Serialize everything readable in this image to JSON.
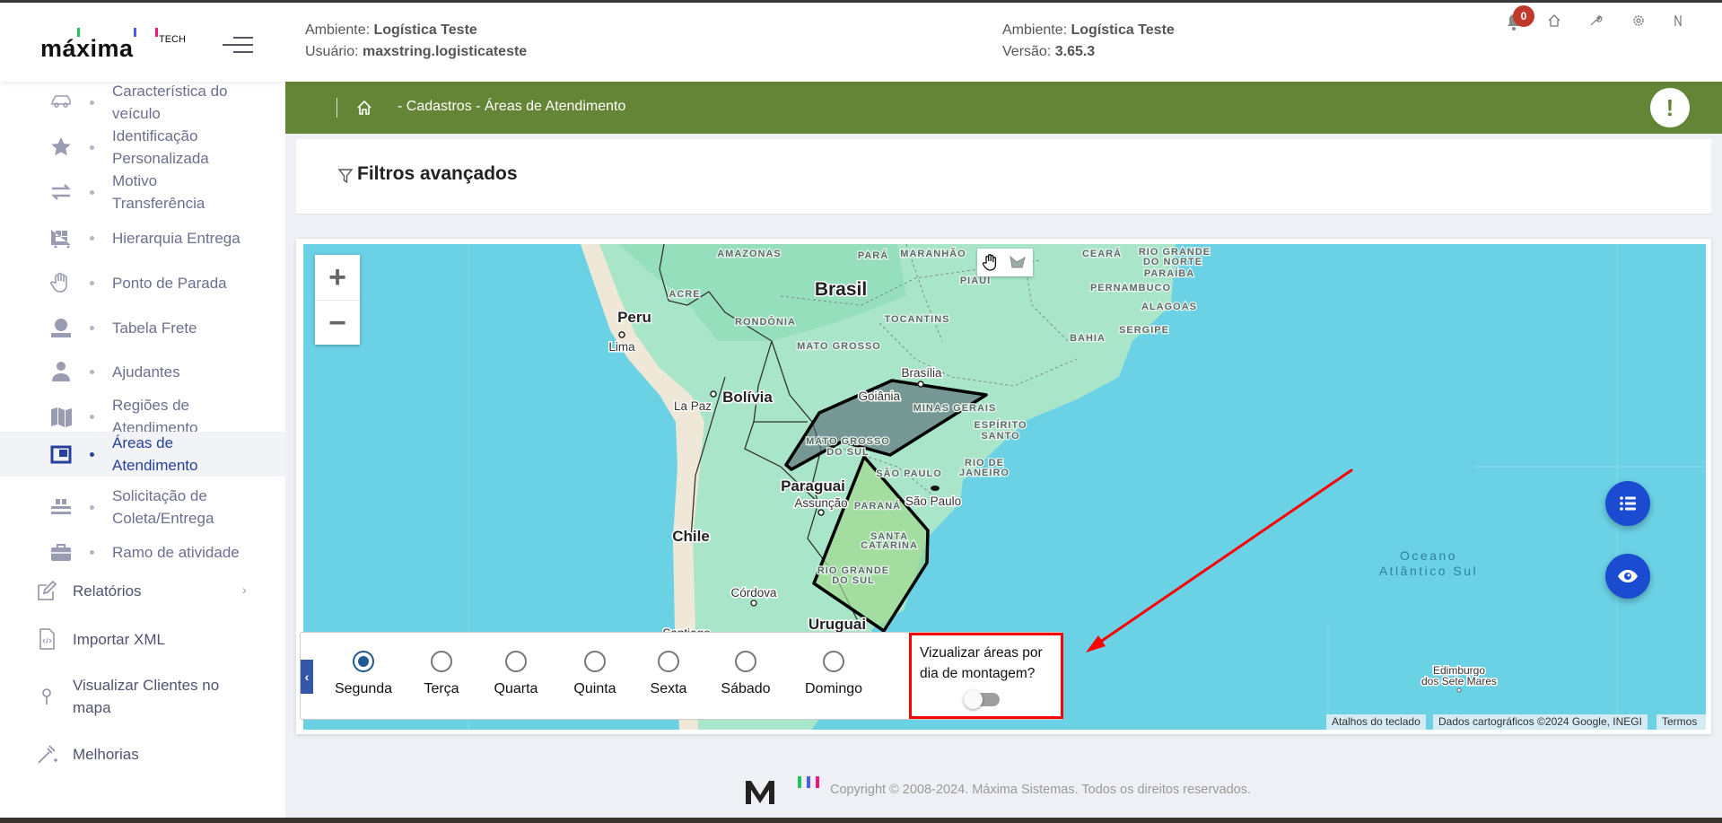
{
  "header": {
    "logo_text": "máxima",
    "logo_suffix": "TECH",
    "env_label": "Ambiente:",
    "env_value": "Logística Teste",
    "user_label": "Usuário:",
    "user_value": "maxstring.logisticateste",
    "env2_label": "Ambiente:",
    "env2_value": "Logística Teste",
    "version_label": "Versão:",
    "version_value": "3.65.3",
    "notification_count": "0",
    "icons": [
      "bell-icon",
      "home-icon",
      "wrench-icon",
      "gear-icon",
      "logout-icon"
    ]
  },
  "breadcrumb": {
    "text": "- Cadastros - Áreas de Atendimento",
    "alert": "!"
  },
  "sidebar": {
    "subitems": [
      {
        "lines": [
          "Característica do",
          "veículo"
        ],
        "icon": "car-icon"
      },
      {
        "lines": [
          "Identificação",
          "Personalizada"
        ],
        "icon": "star-icon"
      },
      {
        "lines": [
          "Motivo",
          "Transferência"
        ],
        "icon": "transfer-icon"
      },
      {
        "lines": [
          "Hierarquia Entrega"
        ],
        "icon": "pallet-icon"
      },
      {
        "lines": [
          "Ponto de Parada"
        ],
        "icon": "hand-icon"
      },
      {
        "lines": [
          "Tabela Frete"
        ],
        "icon": "money-icon"
      },
      {
        "lines": [
          "Ajudantes"
        ],
        "icon": "user-icon"
      },
      {
        "lines": [
          "Regiões de",
          "Atendimento"
        ],
        "icon": "map-icon"
      },
      {
        "lines": [
          "Áreas de",
          "Atendimento"
        ],
        "icon": "area-icon",
        "active": true
      },
      {
        "lines": [
          "Solicitação de",
          "Coleta/Entrega"
        ],
        "icon": "dolly-icon"
      },
      {
        "lines": [
          "Ramo de atividade"
        ],
        "icon": "briefcase-icon"
      }
    ],
    "top_items": [
      {
        "lines": [
          "Relatórios"
        ],
        "icon": "edit-icon",
        "has_children": true
      },
      {
        "lines": [
          "Importar XML"
        ],
        "icon": "xml-file-icon"
      },
      {
        "lines": [
          "Visualizar Clientes no",
          "mapa"
        ],
        "icon": "pin-icon"
      },
      {
        "lines": [
          "Melhorias"
        ],
        "icon": "magic-wand-icon"
      }
    ]
  },
  "filters": {
    "title": "Filtros avançados"
  },
  "map": {
    "zoom_in": "+",
    "zoom_out": "−",
    "colors": {
      "water": "#6bd2e6",
      "land": "#a8e6c8",
      "area_grey": "#5a6e78",
      "area_green": "#a3d98e"
    },
    "labels": {
      "amazonas": "AMAZONAS",
      "para": "PARÁ",
      "maranhao": "MARANHÃO",
      "ceara": "CEARÁ",
      "rn1": "RIO GRANDE",
      "rn2": "DO NORTE",
      "brasil": "Brasil",
      "acre": "ACRE",
      "peru": "Peru",
      "lima": "Lima",
      "rondonia": "RONDÔNIA",
      "tocantins": "TOCANTINS",
      "piaui": "PIAUÍ",
      "pernambuco": "PERNAMBUCO",
      "paraiba": "PARAÍBA",
      "alagoas": "ALAGOAS",
      "sergipe": "SERGIPE",
      "bahia": "BAHIA",
      "mato_grosso": "MATO GROSSO",
      "brasilia": "Brasília",
      "bolivia": "Bolívia",
      "la_paz": "La Paz",
      "goiania": "Goiânia",
      "minas": "MINAS GERAIS",
      "es1": "ESPÍRITO",
      "es2": "SANTO",
      "ms1": "MATO GROSSO",
      "ms2": "DO SUL",
      "rj1": "RIO DE",
      "rj2": "JANEIRO",
      "sp_state": "SÃO PAULO",
      "paraguai": "Paraguai",
      "sao_paulo": "São Paulo",
      "assuncao": "Assunção",
      "parana": "PARANÁ",
      "sc1": "SANTA",
      "sc2": "CATARINA",
      "chile": "Chile",
      "rs1": "RIO GRANDE",
      "rs2": "DO SUL",
      "cordova": "Córdova",
      "uruguai": "Uruguai",
      "santiago": "Santiago",
      "ocean1": "Oceano",
      "ocean2": "Atlântico Sul",
      "edimburgo1": "Edimburgo",
      "edimburgo2": "dos Sete Mares"
    },
    "attribution": [
      "Atalhos do teclado",
      "Dados cartográficos ©2024 Google, INEGI",
      "Termos"
    ]
  },
  "days": {
    "options": [
      "Segunda",
      "Terça",
      "Quarta",
      "Quinta",
      "Sexta",
      "Sábado",
      "Domingo"
    ],
    "selected": "Segunda",
    "toggle_label_1": "Vizualizar áreas por",
    "toggle_label_2": "dia de montagem?",
    "toggle_on": false
  },
  "annotation_color": "#ff0000",
  "footer": {
    "copyright": "Copyright © 2008-2024. Máxima Sistemas. Todos os direitos reservados."
  }
}
